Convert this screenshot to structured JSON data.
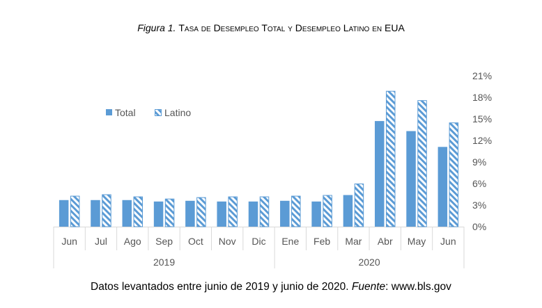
{
  "title": {
    "figure_label": "Figura 1.",
    "text": "Tasa de Desempleo Total y Desempleo Latino en EUA"
  },
  "footer": {
    "text": "Datos levantados entre junio de 2019 y junio de 2020.",
    "source_label": "Fuente",
    "source_value": ": www.bls.gov"
  },
  "colors": {
    "total": "#5b9bd5",
    "latino": "#5b9bd5",
    "axis": "#d9d9d9",
    "text": "#555555"
  },
  "chart_data": {
    "type": "bar",
    "categories": [
      "Jun",
      "Jul",
      "Ago",
      "Sep",
      "Oct",
      "Nov",
      "Dic",
      "Ene",
      "Feb",
      "Mar",
      "Abr",
      "May",
      "Jun"
    ],
    "groups": [
      {
        "label": "2019",
        "start": 0,
        "end": 6
      },
      {
        "label": "2020",
        "start": 7,
        "end": 12
      }
    ],
    "series": [
      {
        "name": "Total",
        "style": "solid",
        "values": [
          3.7,
          3.7,
          3.7,
          3.5,
          3.6,
          3.5,
          3.5,
          3.6,
          3.5,
          4.4,
          14.7,
          13.3,
          11.1
        ]
      },
      {
        "name": "Latino",
        "style": "hatched",
        "values": [
          4.3,
          4.5,
          4.2,
          3.9,
          4.1,
          4.2,
          4.2,
          4.3,
          4.4,
          6.0,
          18.9,
          17.6,
          14.5
        ]
      }
    ],
    "y_axis": {
      "position": "right",
      "min": 0,
      "max": 21,
      "ticks": [
        0,
        3,
        6,
        9,
        12,
        15,
        18,
        21
      ],
      "tick_labels": [
        "0%",
        "3%",
        "6%",
        "9%",
        "12%",
        "15%",
        "18%",
        "21%"
      ]
    },
    "legend": {
      "position": "upper-left"
    }
  }
}
